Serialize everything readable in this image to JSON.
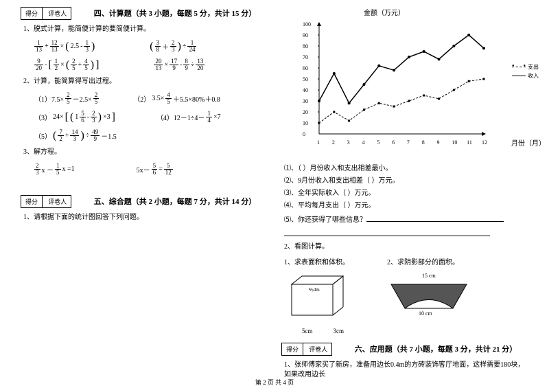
{
  "left": {
    "scorebox": {
      "a": "得分",
      "b": "评卷人"
    },
    "section4_title": "四、计算题（共 3 小题，每题 5 分，共计 15 分）",
    "q1": "1、脱式计算，能简便计算的要简便计算。",
    "e1a": {
      "f1n": "1",
      "f1d": "13",
      "f2n": "12",
      "f2d": "13",
      "p1": "2.5",
      "f3n": "1",
      "f3d": "3"
    },
    "e1b": {
      "f1n": "3",
      "f1d": "8",
      "f2n": "2",
      "f2d": "3",
      "f3n": "1",
      "f3d": "24"
    },
    "e2a": {
      "f1n": "9",
      "f1d": "20",
      "f2n": "1",
      "f2d": "2",
      "f3n": "2",
      "f3d": "5",
      "f4n": "4",
      "f4d": "5"
    },
    "e2b": {
      "f1n": "20",
      "f1d": "13",
      "f2n": "17",
      "f2d": "9",
      "f3n": "8",
      "f3d": "9",
      "f4n": "13",
      "f4d": "20"
    },
    "q2": "2、计算，能简算得写出过程。",
    "e3a_label": "（1）7.5×",
    "e3a_f1n": "2",
    "e3a_f1d": "5",
    "e3a_mid": "－2.5×",
    "e3a_f2n": "2",
    "e3a_f2d": "5",
    "e3b_label": "（2）",
    "e3b_t": "3.5×",
    "e3b_fn": "4",
    "e3b_fd": "5",
    "e3b_rest": "＋5.5×80%＋0.8",
    "e4a_label": "（3）",
    "e4a_p": "24×",
    "e4a_f1n": "5",
    "e4a_f1d": "6",
    "e4a_f2n": "2",
    "e4a_f2d": "3",
    "e4a_x": "×3",
    "e4b_label": "（4）12－1÷4－",
    "e4b_fn": "1",
    "e4b_fd": "4",
    "e4b_x": "×7",
    "e5_label": "（5）",
    "e5_f1n": "7",
    "e5_f1d": "2",
    "e5_f2n": "14",
    "e5_f2d": "3",
    "e5_f3n": "49",
    "e5_f3d": "9",
    "e5_x": "－1.5",
    "q3": "3、解方程。",
    "eq1_f1n": "2",
    "eq1_f1d": "3",
    "eq1_mid": " x －",
    "eq1_f2n": "1",
    "eq1_f2d": "5",
    "eq1_end": " x =1",
    "eq2_a": "5x－ ",
    "eq2_f1n": "5",
    "eq2_f1d": "6",
    "eq2_eq": " = ",
    "eq2_f2n": "5",
    "eq2_f2d": "12",
    "section5_title": "五、综合题（共 2 小题，每题 7 分，共计 14 分）",
    "q5_1": "1、请根据下面的统计图回答下列问题。"
  },
  "right": {
    "chart_title": "金额（万元）",
    "x_axis_label": "月份（月）",
    "legend_out": "支出",
    "legend_in": "收入",
    "y_ticks": [
      "100",
      "90",
      "80",
      "70",
      "60",
      "50",
      "40",
      "30",
      "20",
      "10",
      "0"
    ],
    "x_ticks": [
      "1",
      "2",
      "3",
      "4",
      "5",
      "6",
      "7",
      "8",
      "9",
      "10",
      "11",
      "12"
    ],
    "series_income": [
      30,
      55,
      28,
      45,
      62,
      58,
      70,
      75,
      68,
      80,
      90,
      78
    ],
    "series_expense": [
      10,
      20,
      12,
      22,
      28,
      25,
      30,
      35,
      32,
      40,
      48,
      50
    ],
    "sub_q1": "⑴、（  ）月份收入和支出相差最小。",
    "sub_q2": "⑵、9月份收入和支出相差（  ）万元。",
    "sub_q3": "⑶、全年实际收入（  ）万元。",
    "sub_q4": "⑷、平均每月支出（  ）万元。",
    "sub_q5": "⑸、你还获得了哪些信息？",
    "q2": "2、看图计算。",
    "q2_1": "1、求表面积和体积。",
    "q2_2": "2、求阴影部分的面积。",
    "cuboid_w": "5cm",
    "cuboid_h": "3cm",
    "cuboid_d_n": "4",
    "cuboid_d_d": "5",
    "cuboid_d_u": "dm",
    "arc_top": "15 cm",
    "arc_bot": "10 cm",
    "scorebox": {
      "a": "得分",
      "b": "评卷人"
    },
    "section6_title": "六、应用题（共 7 小题，每题 3 分，共计 21 分）",
    "q6_1": "1、张师傅家买了新房，准备用边长0.4m的方砖装饰客厅地面，这样需要180块，如果改用边长"
  },
  "footer": "第 2 页 共 4 页"
}
